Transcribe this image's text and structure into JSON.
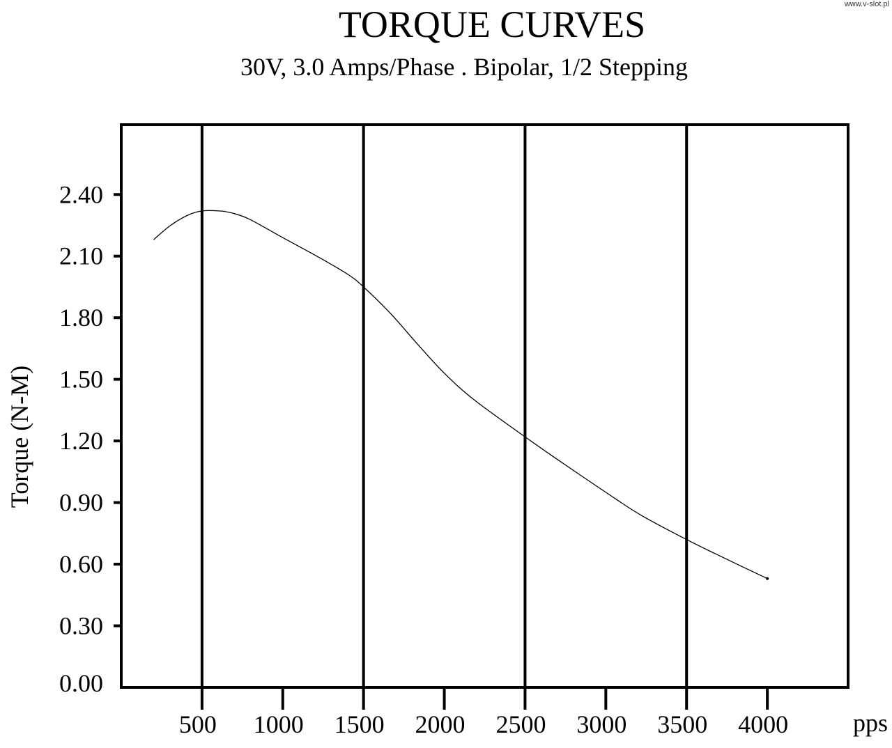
{
  "watermark": "www.v-slot.pl",
  "chart_data": {
    "type": "line",
    "title": "TORQUE CURVES",
    "subtitle": "30V, 3.0 Amps/Phase . Bipolar, 1/2 Stepping",
    "xlabel": "pps",
    "ylabel": "Torque (N-M)",
    "xlim": [
      0,
      4500
    ],
    "ylim": [
      0,
      2.74
    ],
    "x_ticks": [
      500,
      1000,
      1500,
      2000,
      2500,
      3000,
      3500,
      4000
    ],
    "x_tick_labels": [
      "500",
      "1000",
      "1500",
      "2000",
      "2500",
      "3000",
      "3500",
      "4000"
    ],
    "y_ticks": [
      0,
      0.3,
      0.6,
      0.9,
      1.2,
      1.5,
      1.8,
      2.1,
      2.4
    ],
    "y_tick_labels": [
      "0.00",
      "0.30",
      "0.60",
      "0.90",
      "1.20",
      "1.50",
      "1.80",
      "2.10",
      "2.40"
    ],
    "grid_x": [
      500,
      1500,
      2500,
      3500
    ],
    "grid": "vertical lines at 500, 1500, 2500, 3500",
    "legend": "none",
    "line_color": "#000000",
    "series": [
      {
        "x": [
          200,
          306,
          414,
          500,
          608,
          685,
          793,
          1000,
          1233,
          1405,
          1500,
          1668,
          1836,
          2000,
          2185,
          2500,
          2700,
          3000,
          3215,
          3500,
          3733,
          4000
        ],
        "y": [
          2.18,
          2.25,
          2.3,
          2.32,
          2.32,
          2.31,
          2.28,
          2.19,
          2.09,
          2.01,
          1.95,
          1.82,
          1.67,
          1.53,
          1.4,
          1.22,
          1.11,
          0.95,
          0.84,
          0.72,
          0.63,
          0.53
        ]
      }
    ]
  }
}
